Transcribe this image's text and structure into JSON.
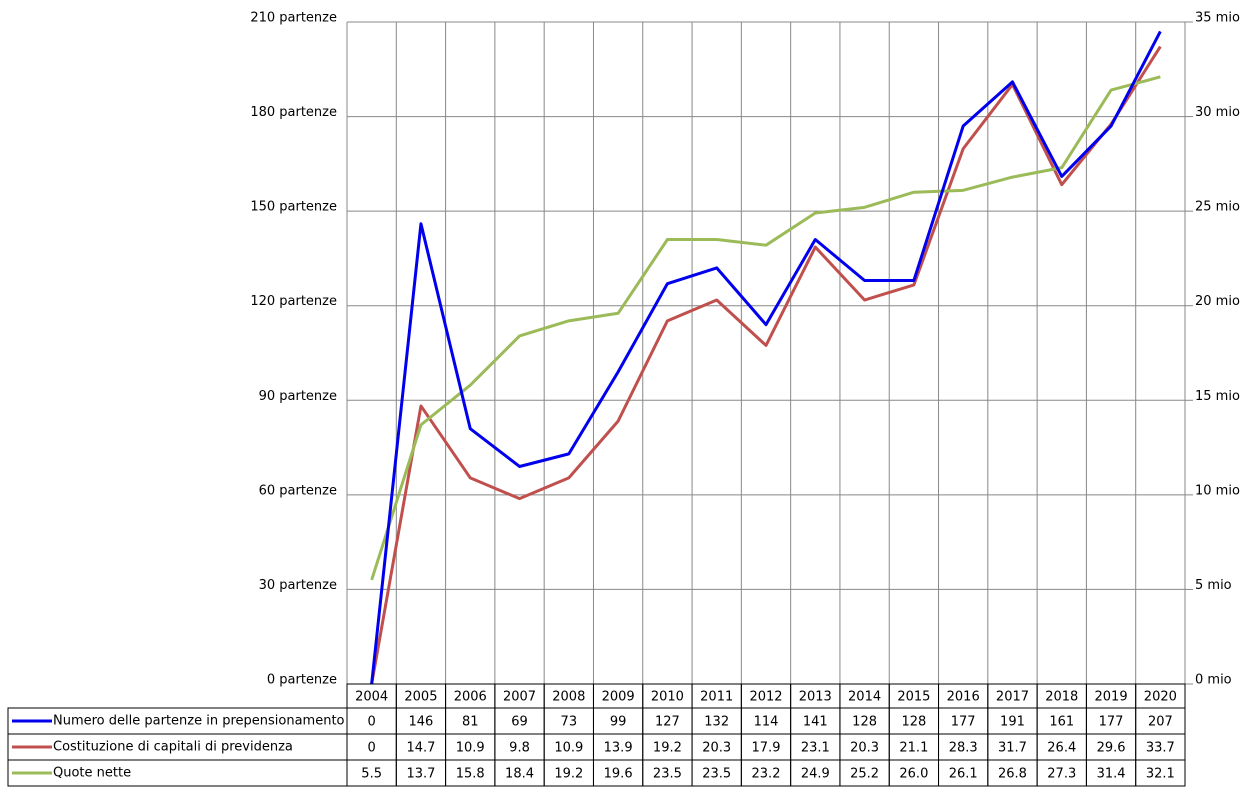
{
  "chart_data": {
    "type": "line",
    "categories": [
      "2004",
      "2005",
      "2006",
      "2007",
      "2008",
      "2009",
      "2010",
      "2011",
      "2012",
      "2013",
      "2014",
      "2015",
      "2016",
      "2017",
      "2018",
      "2019",
      "2020"
    ],
    "series": [
      {
        "name": "Numero delle partenze in prepensionamento",
        "color": "#0000ee",
        "values": [
          0,
          146,
          81,
          69,
          73,
          99,
          127,
          132,
          114,
          141,
          128,
          128,
          177,
          191,
          161,
          177,
          207
        ]
      },
      {
        "name": "Costituzione di capitali di previdenza",
        "color": "#c0504d",
        "axis": "y2",
        "values": [
          0,
          14.7,
          10.9,
          9.8,
          10.9,
          13.9,
          19.2,
          20.3,
          17.9,
          23.1,
          20.3,
          21.1,
          28.3,
          31.7,
          26.4,
          29.6,
          33.7
        ]
      },
      {
        "name": "Quote nette",
        "color": "#9bbb59",
        "axis": "y2",
        "values": [
          5.5,
          13.7,
          15.8,
          18.4,
          19.2,
          19.6,
          23.5,
          23.5,
          23.2,
          24.9,
          25.2,
          26.0,
          26.1,
          26.8,
          27.3,
          31.4,
          32.1
        ],
        "value_labels": [
          "5.5",
          "13.7",
          "15.8",
          "18.4",
          "19.2",
          "19.6",
          "23.5",
          "23.5",
          "23.2",
          "24.9",
          "25.2",
          "26.0",
          "26.1",
          "26.8",
          "27.3",
          "31.4",
          "32.1"
        ]
      }
    ],
    "ylim": [
      0,
      210
    ],
    "yticks": [
      {
        "value": 0,
        "label": "0 partenze"
      },
      {
        "value": 30,
        "label": "30 partenze"
      },
      {
        "value": 60,
        "label": "60 partenze"
      },
      {
        "value": 90,
        "label": "90 partenze"
      },
      {
        "value": 120,
        "label": "120 partenze"
      },
      {
        "value": 150,
        "label": "150 partenze"
      },
      {
        "value": 180,
        "label": "180 partenze"
      },
      {
        "value": 210,
        "label": "210 partenze"
      }
    ],
    "y2lim": [
      0,
      35
    ],
    "y2ticks": [
      {
        "value": 0,
        "label": "0 mio"
      },
      {
        "value": 5,
        "label": "5 mio"
      },
      {
        "value": 10,
        "label": "10 mio"
      },
      {
        "value": 15,
        "label": "15 mio"
      },
      {
        "value": 20,
        "label": "20 mio"
      },
      {
        "value": 25,
        "label": "25 mio"
      },
      {
        "value": 30,
        "label": "30 mio"
      },
      {
        "value": 35,
        "label": "35 mio"
      }
    ],
    "grid": true
  }
}
